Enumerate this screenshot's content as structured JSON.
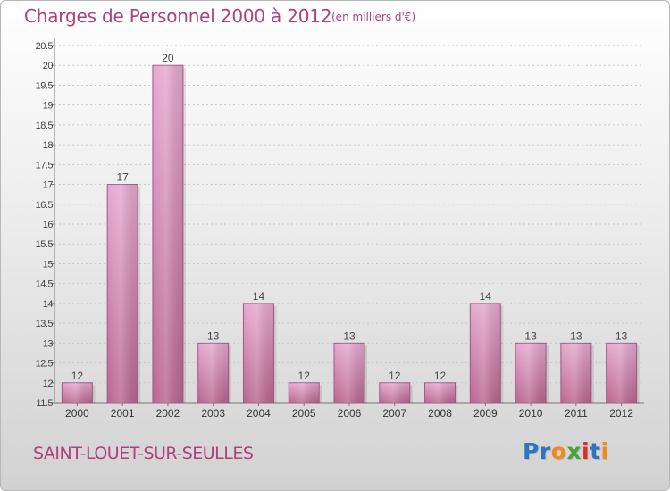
{
  "header": {
    "title": "Charges de Personnel 2000 à 2012",
    "subtitle": "(en milliers d'€)"
  },
  "footer": {
    "commune": "SAINT-LOUET-SUR-SEULLES",
    "logo_text": "Proxiti",
    "logo_letters": [
      {
        "ch": "P",
        "color": "#2f74c0"
      },
      {
        "ch": "r",
        "color": "#2f74c0"
      },
      {
        "ch": "o",
        "color": "#f08a1c"
      },
      {
        "ch": "x",
        "color": "#4aa33a"
      },
      {
        "ch": "i",
        "color": "#d9302e"
      },
      {
        "ch": "t",
        "color": "#2f74c0"
      },
      {
        "ch": "i",
        "color": "#f08a1c"
      }
    ]
  },
  "colors": {
    "accent_text": "#b0407a",
    "bar_top": "#e6a8cf",
    "bar_bottom": "#b8668f",
    "bar_border": "#a45a82"
  },
  "chart_data": {
    "type": "bar",
    "title": "Charges de Personnel 2000 à 2012",
    "subtitle": "(en milliers d'€)",
    "categories": [
      "2000",
      "2001",
      "2002",
      "2003",
      "2004",
      "2005",
      "2006",
      "2007",
      "2008",
      "2009",
      "2010",
      "2011",
      "2012"
    ],
    "values": [
      12,
      17,
      20,
      13,
      14,
      12,
      13,
      12,
      12,
      14,
      13,
      13,
      13
    ],
    "ylim": [
      11.5,
      20.5
    ],
    "yticks": [
      "11.5",
      "12",
      "12.5",
      "13",
      "13.5",
      "14",
      "14.5",
      "15",
      "15.5",
      "16",
      "16.5",
      "17",
      "17.5",
      "18",
      "18.5",
      "19",
      "19.5",
      "20",
      "20.5"
    ],
    "grid": true,
    "legend": "none"
  }
}
